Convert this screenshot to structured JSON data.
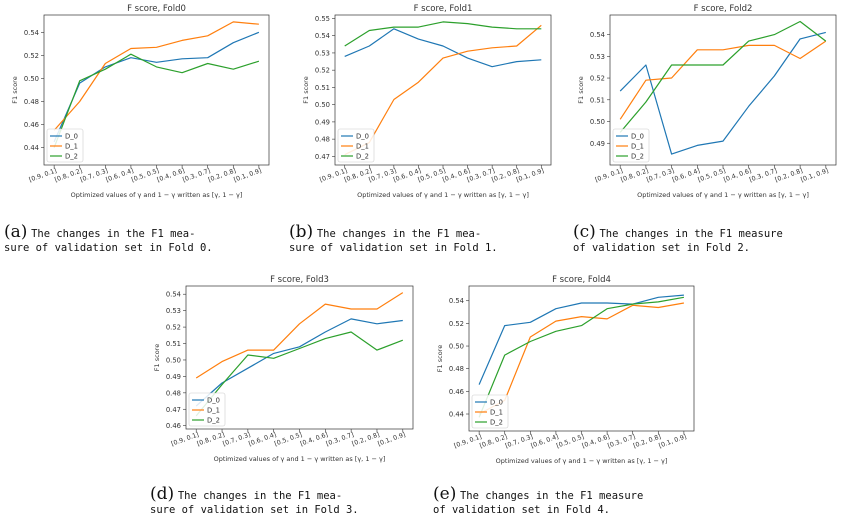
{
  "chart_data": [
    {
      "type": "line",
      "title": "F score, Fold0",
      "xlabel": "Optimized values of γ and 1 − γ written as [γ, 1 − γ]",
      "ylabel": "F1 score",
      "categories": [
        "[0.9, 0.1]",
        "[0.8, 0.2]",
        "[0.7, 0.3]",
        "[0.6, 0.4]",
        "[0.5, 0.5]",
        "[0.4, 0.6]",
        "[0.3, 0.7]",
        "[0.2, 0.8]",
        "[0.1, 0.9]"
      ],
      "ylim": [
        0.425,
        0.555
      ],
      "yticks": [
        "0.44",
        "0.46",
        "0.48",
        "0.50",
        "0.52",
        "0.54"
      ],
      "yticks_values": [
        0.44,
        0.46,
        0.48,
        0.5,
        0.52,
        0.54
      ],
      "legend": "lower-left",
      "series": [
        {
          "name": "D_0",
          "color": "#1f77b4",
          "values": [
            0.445,
            0.496,
            0.51,
            0.518,
            0.514,
            0.517,
            0.518,
            0.531,
            0.54
          ]
        },
        {
          "name": "D_1",
          "color": "#ff7f0e",
          "values": [
            0.455,
            0.48,
            0.513,
            0.526,
            0.527,
            0.533,
            0.537,
            0.549,
            0.547
          ]
        },
        {
          "name": "D_2",
          "color": "#2ca02c",
          "values": [
            0.44,
            0.498,
            0.508,
            0.521,
            0.51,
            0.505,
            0.513,
            0.508,
            0.515
          ]
        }
      ]
    },
    {
      "type": "line",
      "title": "F score, Fold1",
      "xlabel": "Optimized values of γ and 1 − γ written as [γ, 1 − γ]",
      "ylabel": "F1 score",
      "categories": [
        "[0.9, 0.1]",
        "[0.8, 0.2]",
        "[0.7, 0.3]",
        "[0.6, 0.4]",
        "[0.5, 0.5]",
        "[0.4, 0.6]",
        "[0.3, 0.7]",
        "[0.2, 0.8]",
        "[0.1, 0.9]"
      ],
      "ylim": [
        0.465,
        0.552
      ],
      "yticks": [
        "0.47",
        "0.48",
        "0.49",
        "0.50",
        "0.51",
        "0.52",
        "0.53",
        "0.54",
        "0.55"
      ],
      "yticks_values": [
        0.47,
        0.48,
        0.49,
        0.5,
        0.51,
        0.52,
        0.53,
        0.54,
        0.55
      ],
      "legend": "lower-left",
      "series": [
        {
          "name": "D_0",
          "color": "#1f77b4",
          "values": [
            0.528,
            0.534,
            0.544,
            0.538,
            0.534,
            0.527,
            0.522,
            0.525,
            0.526
          ]
        },
        {
          "name": "D_1",
          "color": "#ff7f0e",
          "values": [
            0.471,
            0.478,
            0.503,
            0.513,
            0.527,
            0.531,
            0.533,
            0.534,
            0.546
          ]
        },
        {
          "name": "D_2",
          "color": "#2ca02c",
          "values": [
            0.534,
            0.543,
            0.545,
            0.545,
            0.548,
            0.547,
            0.545,
            0.544,
            0.544
          ]
        }
      ]
    },
    {
      "type": "line",
      "title": "F score, Fold2",
      "xlabel": "Optimized values of γ and 1 − γ written as [γ, 1 − γ]",
      "ylabel": "F1 score",
      "categories": [
        "[0.9, 0.1]",
        "[0.8, 0.2]",
        "[0.7, 0.3]",
        "[0.6, 0.4]",
        "[0.5, 0.5]",
        "[0.4, 0.6]",
        "[0.3, 0.7]",
        "[0.2, 0.8]",
        "[0.1, 0.9]"
      ],
      "ylim": [
        0.48,
        0.549
      ],
      "yticks": [
        "0.49",
        "0.50",
        "0.51",
        "0.52",
        "0.53",
        "0.54"
      ],
      "yticks_values": [
        0.49,
        0.5,
        0.51,
        0.52,
        0.53,
        0.54
      ],
      "legend": "lower-left",
      "series": [
        {
          "name": "D_0",
          "color": "#1f77b4",
          "values": [
            0.514,
            0.526,
            0.485,
            0.489,
            0.491,
            0.507,
            0.521,
            0.538,
            0.541
          ]
        },
        {
          "name": "D_1",
          "color": "#ff7f0e",
          "values": [
            0.501,
            0.519,
            0.52,
            0.533,
            0.533,
            0.535,
            0.535,
            0.529,
            0.537
          ]
        },
        {
          "name": "D_2",
          "color": "#2ca02c",
          "values": [
            0.495,
            0.509,
            0.526,
            0.526,
            0.526,
            0.537,
            0.54,
            0.546,
            0.537
          ]
        }
      ]
    },
    {
      "type": "line",
      "title": "F score, Fold3",
      "xlabel": "Optimized values of γ and 1 − γ written as [γ, 1 − γ]",
      "ylabel": "F1 score",
      "categories": [
        "[0.9, 0.1]",
        "[0.8, 0.2]",
        "[0.7, 0.3]",
        "[0.6, 0.4]",
        "[0.5, 0.5]",
        "[0.4, 0.6]",
        "[0.3, 0.7]",
        "[0.2, 0.8]",
        "[0.1, 0.9]"
      ],
      "ylim": [
        0.458,
        0.545
      ],
      "yticks": [
        "0.46",
        "0.47",
        "0.48",
        "0.49",
        "0.50",
        "0.51",
        "0.52",
        "0.53",
        "0.54"
      ],
      "yticks_values": [
        0.46,
        0.47,
        0.48,
        0.49,
        0.5,
        0.51,
        0.52,
        0.53,
        0.54
      ],
      "legend": "lower-left",
      "series": [
        {
          "name": "D_0",
          "color": "#1f77b4",
          "values": [
            0.472,
            0.486,
            0.495,
            0.504,
            0.508,
            0.517,
            0.525,
            0.522,
            0.524
          ]
        },
        {
          "name": "D_1",
          "color": "#ff7f0e",
          "values": [
            0.489,
            0.499,
            0.506,
            0.506,
            0.522,
            0.534,
            0.531,
            0.531,
            0.541
          ]
        },
        {
          "name": "D_2",
          "color": "#2ca02c",
          "values": [
            0.466,
            0.485,
            0.503,
            0.501,
            0.507,
            0.513,
            0.517,
            0.506,
            0.512
          ]
        }
      ]
    },
    {
      "type": "line",
      "title": "F score, Fold4",
      "xlabel": "Optimized values of γ and 1 − γ written as [γ, 1 − γ]",
      "ylabel": "F1 score",
      "categories": [
        "[0.9, 0.1]",
        "[0.8, 0.2]",
        "[0.7, 0.3]",
        "[0.6, 0.4]",
        "[0.5, 0.5]",
        "[0.4, 0.6]",
        "[0.3, 0.7]",
        "[0.2, 0.8]",
        "[0.1, 0.9]"
      ],
      "ylim": [
        0.425,
        0.553
      ],
      "yticks": [
        "0.44",
        "0.46",
        "0.48",
        "0.50",
        "0.52",
        "0.54"
      ],
      "yticks_values": [
        0.44,
        0.46,
        0.48,
        0.5,
        0.52,
        0.54
      ],
      "legend": "lower-left",
      "series": [
        {
          "name": "D_0",
          "color": "#1f77b4",
          "values": [
            0.466,
            0.518,
            0.521,
            0.533,
            0.538,
            0.538,
            0.537,
            0.543,
            0.545
          ]
        },
        {
          "name": "D_1",
          "color": "#ff7f0e",
          "values": [
            0.44,
            0.452,
            0.508,
            0.522,
            0.526,
            0.524,
            0.536,
            0.534,
            0.538
          ]
        },
        {
          "name": "D_2",
          "color": "#2ca02c",
          "values": [
            0.437,
            0.492,
            0.504,
            0.513,
            0.518,
            0.533,
            0.537,
            0.539,
            0.543
          ]
        }
      ]
    }
  ],
  "captions": [
    {
      "tag": "(a)",
      "line1": "The changes in the F1 mea-",
      "line2": "sure of validation set in Fold 0."
    },
    {
      "tag": "(b)",
      "line1": "The changes in the F1 mea-",
      "line2": "sure of validation set in Fold 1."
    },
    {
      "tag": "(c)",
      "line1": "The changes in the F1 measure",
      "line2": "of validation set in Fold 2."
    },
    {
      "tag": "(d)",
      "line1": "The changes in the F1 mea-",
      "line2": "sure of validation set in Fold 3."
    },
    {
      "tag": "(e)",
      "line1": "The changes in the F1 measure",
      "line2": "of validation set in Fold 4."
    }
  ]
}
